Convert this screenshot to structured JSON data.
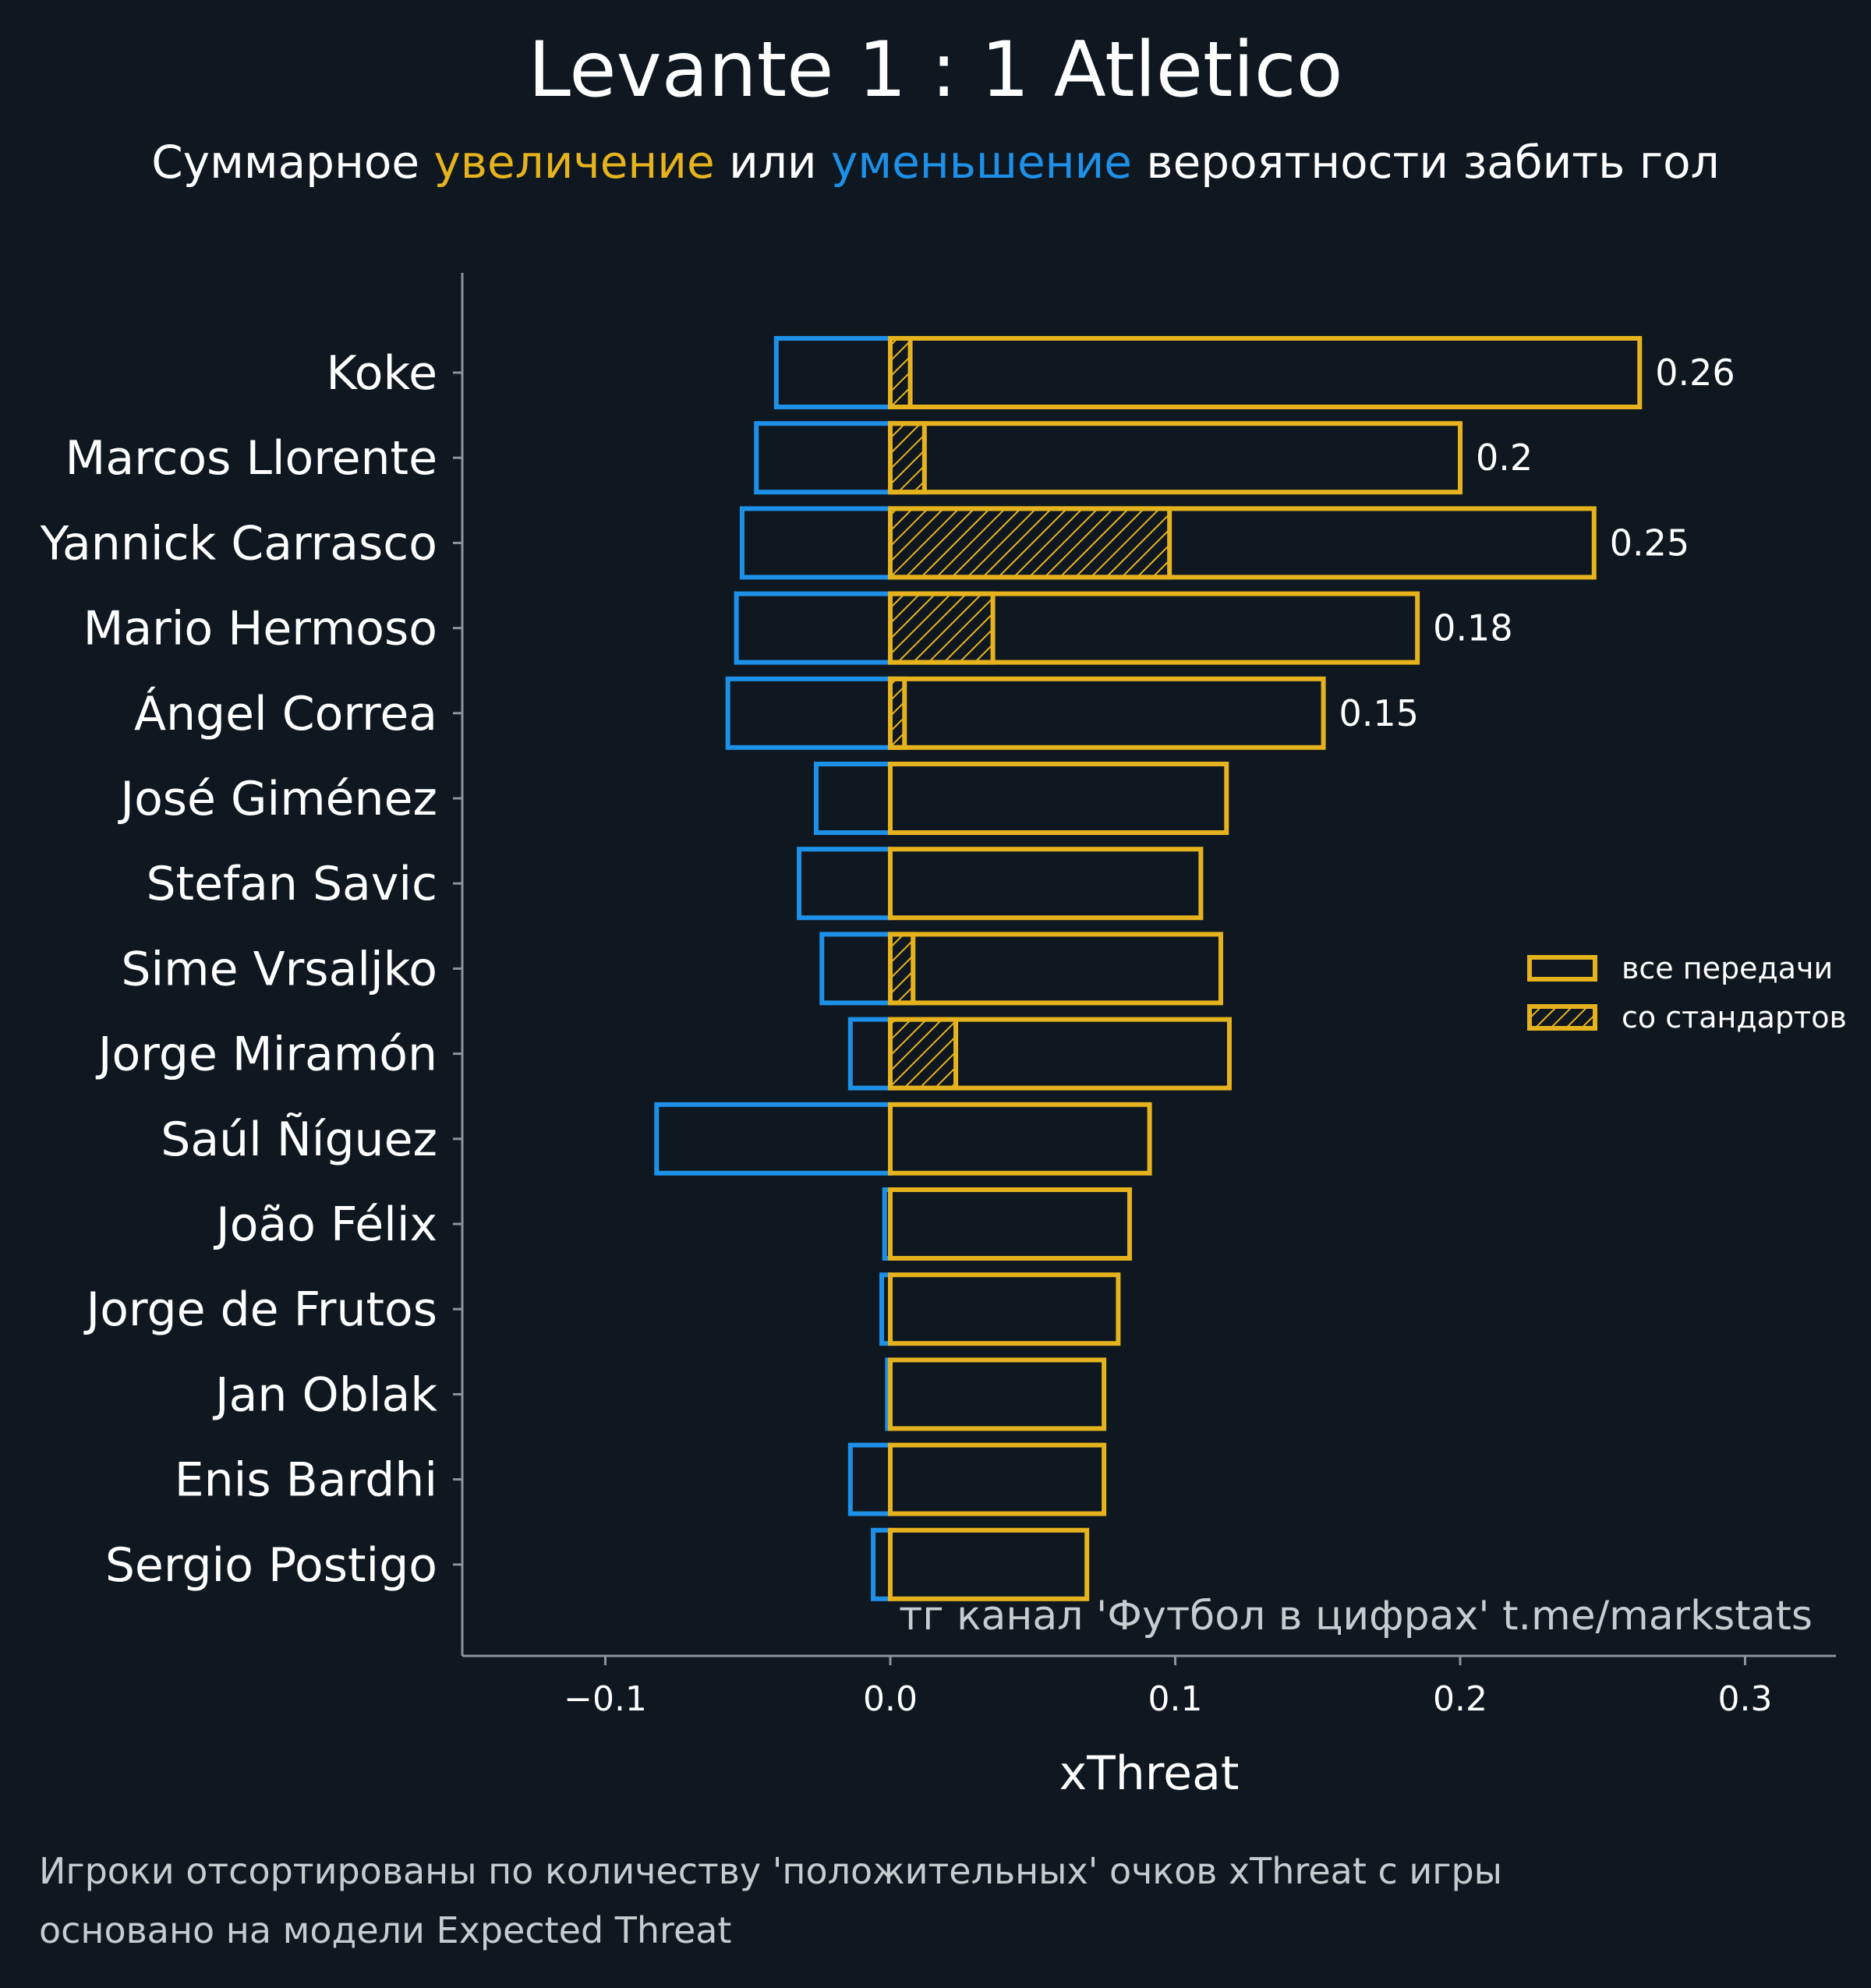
{
  "colors": {
    "background": "#0f1820",
    "positive": "#e6b31e",
    "negative": "#1e90e8",
    "axis": "#8a959e",
    "text": "#ffffff",
    "muted": "#c7ccd0"
  },
  "header": {
    "title": "Levante 1 : 1 Atletico",
    "subtitle_part1": "Суммарное ",
    "subtitle_up": "увеличение",
    "subtitle_part2": " или ",
    "subtitle_down": "уменьшение",
    "subtitle_part3": " вероятности забить гол"
  },
  "footnote": {
    "line1": "Игроки отсортированы по количеству 'положительных' очков xThreat с игры",
    "line2": "основано на модели Expected Threat"
  },
  "chart_data": {
    "type": "bar",
    "orientation": "horizontal",
    "xlabel": "xThreat",
    "xlim": [
      -0.15,
      0.33
    ],
    "xticks": [
      -0.1,
      0.0,
      0.1,
      0.2,
      0.3
    ],
    "xtick_labels": [
      "−0.1",
      "0.0",
      "0.1",
      "0.2",
      "0.3"
    ],
    "watermark": "тг канал 'Футбол в цифрах'  t.me/markstats",
    "legend": {
      "position": "center-right",
      "items": [
        {
          "label": "все передачи",
          "hatched": false
        },
        {
          "label": "со стандартов",
          "hatched": true
        }
      ]
    },
    "categories": [
      "Koke",
      "Marcos Llorente",
      "Yannick Carrasco",
      "Mario Hermoso",
      "Ángel Correa",
      "José Giménez",
      "Stefan Savic",
      "Sime Vrsaljko",
      "Jorge Miramón",
      "Saúl Ñíguez",
      "João Félix",
      "Jorge de Frutos",
      "Jan Oblak",
      "Enis Bardhi",
      "Sergio Postigo"
    ],
    "series": [
      {
        "name": "увеличение (все передачи)",
        "values": [
          0.263,
          0.2,
          0.247,
          0.185,
          0.152,
          0.118,
          0.109,
          0.116,
          0.119,
          0.091,
          0.084,
          0.08,
          0.075,
          0.075,
          0.069
        ]
      },
      {
        "name": "увеличение со стандартов",
        "values": [
          0.007,
          0.012,
          0.098,
          0.036,
          0.005,
          0.0,
          0.0,
          0.008,
          0.023,
          0.0,
          0.0,
          0.0,
          0.0,
          0.0,
          0.0
        ]
      },
      {
        "name": "уменьшение",
        "values": [
          -0.04,
          -0.047,
          -0.052,
          -0.054,
          -0.057,
          -0.026,
          -0.032,
          -0.024,
          -0.014,
          -0.082,
          -0.002,
          -0.003,
          -0.001,
          -0.014,
          -0.006
        ]
      }
    ],
    "value_labels": [
      "0.26",
      "0.2",
      "0.25",
      "0.18",
      "0.15",
      "",
      "",
      "",
      "",
      "",
      "",
      "",
      "",
      "",
      ""
    ]
  }
}
